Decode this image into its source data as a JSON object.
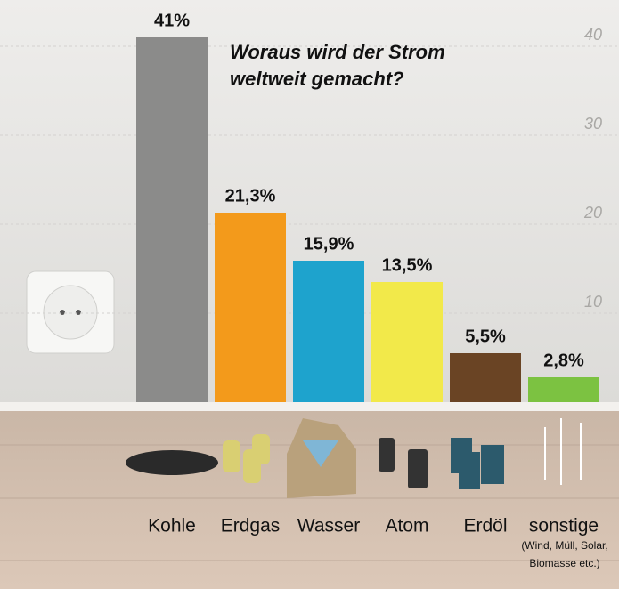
{
  "chart_data": {
    "type": "bar",
    "title": "Woraus wird der Strom weltweit gemacht?",
    "categories": [
      "Kohle",
      "Erdgas",
      "Wasser",
      "Atom",
      "Erdöl",
      "sonstige"
    ],
    "values": [
      41,
      21.3,
      15.9,
      13.5,
      5.5,
      2.8
    ],
    "value_labels": [
      "41%",
      "21,3%",
      "15,9%",
      "13,5%",
      "5,5%",
      "2,8%"
    ],
    "colors": [
      "#8b8b8a",
      "#f39a1b",
      "#1ea3cd",
      "#f2e94a",
      "#6a4424",
      "#7cc241"
    ],
    "category_note": "(Wind, Müll, Solar, Biomasse etc.)",
    "ylim": [
      0,
      45
    ],
    "yticks": [
      10,
      20,
      30,
      40
    ],
    "grid": true
  }
}
